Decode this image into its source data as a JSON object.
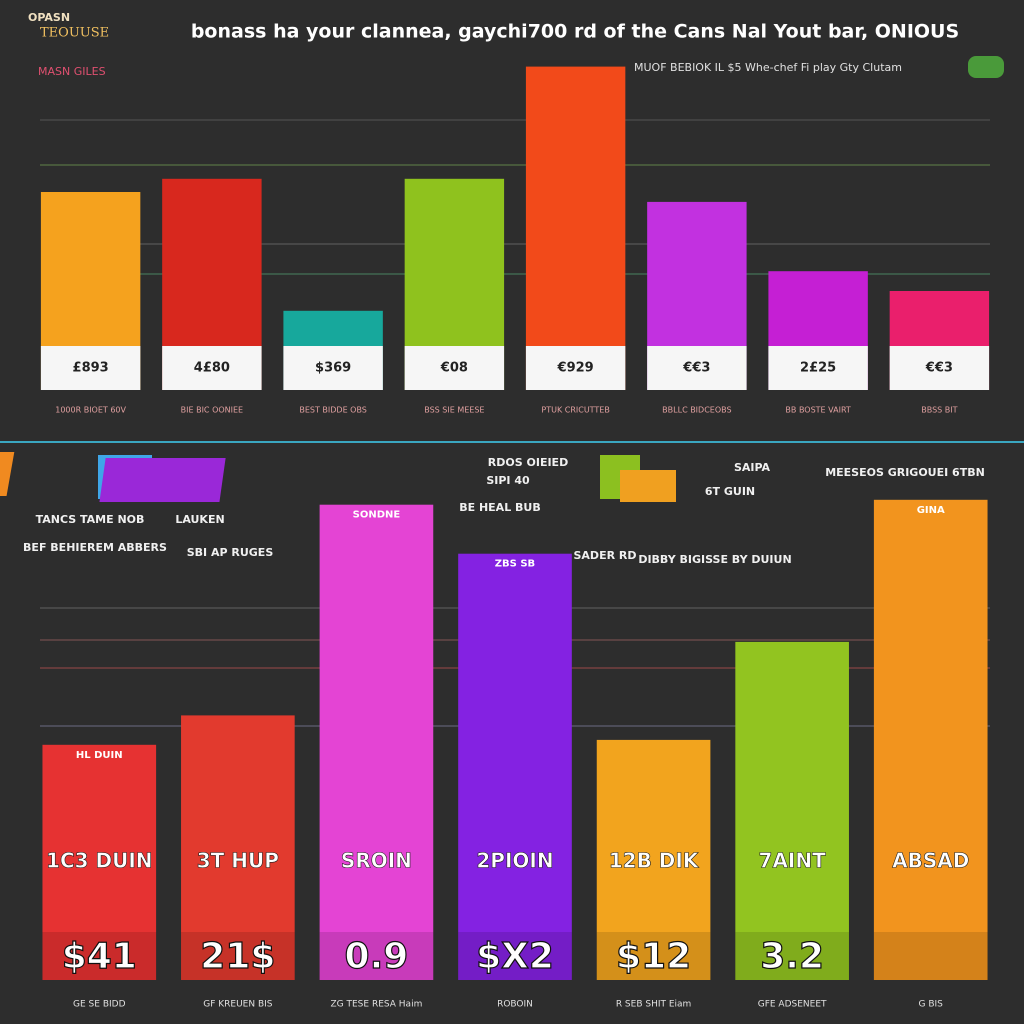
{
  "header": {
    "logo_top": "OPASN",
    "logo_bottom": "TEOUUSE"
  },
  "chart_data": [
    {
      "type": "bar",
      "title": "bonass ha your clannea, gaychi700 rd of the Cans Nal Yout bar, ONIOUS",
      "legend_left": "MASN GILES",
      "legend_right": "MUOF BEBIOK  IL  $5 Whe-chef Fi play Gty Clutam",
      "categories": [
        "1000R BIOET 60V",
        "BIE BIC OONIEE",
        "BEST BIDDE OBS",
        "BSS SIE MEESE",
        "PTUK CRICUTTEB",
        "BBLLC BIDCEOBS",
        "BB BOSTE VAIRT",
        "BBSS BIT"
      ],
      "values": [
        60,
        64,
        24,
        64,
        98,
        57,
        36,
        30
      ],
      "bar_labels": [
        "£893",
        "4£80",
        "$369",
        "€08",
        "€929",
        "€€3",
        "2£25",
        "€€3"
      ],
      "colors": [
        "#f5a21e",
        "#d8281e",
        "#17a89c",
        "#8fc21e",
        "#f24a1a",
        "#c231e0",
        "#c51fd4",
        "#ea1f6c"
      ],
      "ylim": [
        0,
        100
      ]
    },
    {
      "type": "bar",
      "annotations": [
        "TANCS TAME NOB",
        "LAUKEN",
        "BEF BEHIEREM ABBERS",
        "SBI AP RUGES",
        "RDOS OIEIED",
        "SIPI 40",
        "BE HEAL BUB",
        "SADER RD",
        "DIBBY BIGISSE BY DUIUN",
        "6T GUIN",
        "SAIPA",
        "MEESEOS GRIGOUEI 6TBN"
      ],
      "categories": [
        "GE SE BIDD",
        "GF KREUEN BIS",
        "ZG TESE RESA Haim",
        "ROBOIN",
        "R SEB SHIT Eiam",
        "GFE ADSENEET",
        "G BIS"
      ],
      "values": [
        48,
        54,
        97,
        87,
        49,
        69,
        98
      ],
      "top_labels": [
        "HL DUIN",
        null,
        "SONDNE",
        "ZBS SB",
        null,
        null,
        "GINA"
      ],
      "mid_labels": [
        "1C3 DUIN",
        "3T HUP",
        "SROIN",
        "2PIOIN",
        "12B DIK",
        "7AINT",
        "ABSAD"
      ],
      "big_labels": [
        "$41",
        "21$",
        "0.9",
        "$X2",
        "$12",
        "3.2",
        null
      ],
      "colors": [
        "#e63232",
        "#e23a2e",
        "#e444d4",
        "#8422e2",
        "#f2a41e",
        "#92c420",
        "#f2941e"
      ],
      "ylim": [
        0,
        100
      ]
    }
  ]
}
